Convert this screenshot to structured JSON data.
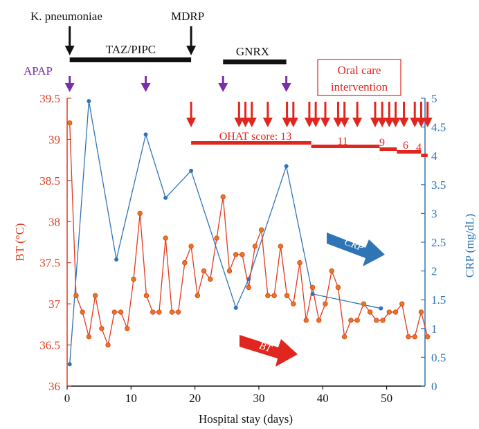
{
  "colors": {
    "bt": "#e03a1e",
    "bt_marker": "#e07a20",
    "crp": "#2f74b5",
    "black": "#111111",
    "apap": "#7a2ea8",
    "oral_arrow": "#e0261e"
  },
  "labels": {
    "k_pneumoniae": "K. pneumoniae",
    "mdrp": "MDRP",
    "taz_pipc": "TAZ/PIPC",
    "gnrx": "GNRX",
    "apap": "APAP",
    "oral_care_line1": "Oral care",
    "oral_care_line2": "intervention",
    "ohat_prefix": "OHAT score: 13",
    "ohat_11": "11",
    "ohat_9": "9",
    "ohat_6": "6",
    "ohat_4": "4",
    "crp_trend": "CRP",
    "bt_trend": "BT"
  },
  "chart_data": {
    "type": "line",
    "xlabel": "Hospital stay (days)",
    "ylabel_left": "BT (°C)",
    "ylabel_right": "CRP (mg/dL)",
    "xlim": [
      0,
      56
    ],
    "ylim_left": [
      36,
      39.5
    ],
    "ylim_right": [
      0,
      5
    ],
    "x_ticks": [
      0,
      10,
      20,
      30,
      40,
      50
    ],
    "y_left_ticks": [
      "36",
      "36.5",
      "37",
      "37.5",
      "38",
      "38.5",
      "39",
      "39.5"
    ],
    "y_right_ticks": [
      "0",
      "0.5",
      "1",
      "1.5",
      "2",
      "2.5",
      "3",
      "3.5",
      "4",
      "4.5",
      "5"
    ],
    "series": [
      {
        "name": "BT",
        "axis": "left",
        "x": [
          0.4,
          1.4,
          2.4,
          3.4,
          4.4,
          5.4,
          6.4,
          7.4,
          8.4,
          9.4,
          10.4,
          11.4,
          12.4,
          13.4,
          14.4,
          15.4,
          16.4,
          17.4,
          18.4,
          19.4,
          20.4,
          21.4,
          22.4,
          23.4,
          24.4,
          25.4,
          26.4,
          27.4,
          28.4,
          29.4,
          30.4,
          31.4,
          32.4,
          33.4,
          34.4,
          35.4,
          36.4,
          37.4,
          38.4,
          39.4,
          40.4,
          41.4,
          42.4,
          43.4,
          44.4,
          45.4,
          46.4,
          47.4,
          48.4,
          49.4,
          50.4,
          51.4,
          52.4,
          53.4,
          54.4,
          55.4,
          56.4
        ],
        "values": [
          39.2,
          37.1,
          36.9,
          36.6,
          37.1,
          36.7,
          36.5,
          36.9,
          36.9,
          36.7,
          37.3,
          38.1,
          37.1,
          36.9,
          36.9,
          37.8,
          36.9,
          36.9,
          37.5,
          37.7,
          37.1,
          37.4,
          37.3,
          37.8,
          38.3,
          37.4,
          37.6,
          37.6,
          37.2,
          37.7,
          37.9,
          37.1,
          37.1,
          37.7,
          37.1,
          37.0,
          37.5,
          36.8,
          37.2,
          36.8,
          37.0,
          37.4,
          37.2,
          36.6,
          36.8,
          36.8,
          37.0,
          36.9,
          36.8,
          36.8,
          36.9,
          36.9,
          37.0,
          36.6,
          36.6,
          36.9,
          36.6
        ]
      },
      {
        "name": "CRP",
        "axis": "right",
        "x": [
          0.4,
          3.4,
          7.7,
          12.3,
          15.4,
          19.4,
          26.4,
          28.4,
          34.3,
          38.4,
          49.1
        ],
        "values": [
          0.38,
          4.95,
          2.2,
          4.37,
          3.27,
          3.74,
          1.36,
          1.86,
          3.82,
          1.6,
          1.35
        ]
      }
    ],
    "events": {
      "black_arrows_x": [
        0.4,
        19.4
      ],
      "taz_pipc_bar": [
        0.4,
        19.4
      ],
      "gnrx_bar": [
        24.4,
        34.3
      ],
      "apap_arrows_x": [
        0.4,
        12.3,
        24.4,
        34.3
      ],
      "oral_care_arrows_x": [
        19.4,
        26.9,
        27.9,
        28.9,
        31.4,
        34.4,
        35.4,
        37.9,
        38.9,
        40.4,
        42.4,
        43.4,
        45.4,
        48.2,
        49.3,
        50.4,
        51.4,
        52.7,
        54.4,
        55.4,
        56.4
      ],
      "ohat_levels": [
        {
          "score": 13,
          "from": 19.4,
          "to": 38.2
        },
        {
          "score": 11,
          "from": 38.2,
          "to": 48.9
        },
        {
          "score": 9,
          "from": 48.9,
          "to": 51.6
        },
        {
          "score": 6,
          "from": 51.6,
          "to": 55.4
        },
        {
          "score": 4,
          "from": 55.4,
          "to": 56.4
        }
      ]
    }
  }
}
